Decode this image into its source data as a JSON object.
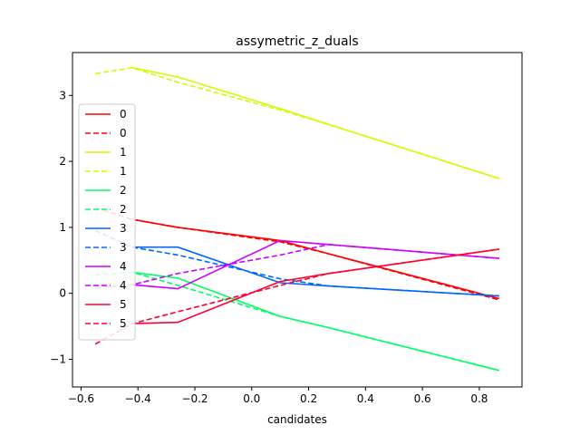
{
  "chart_data": {
    "type": "line",
    "title": "assymetric_z_duals",
    "xlabel": "candidates",
    "ylabel": "",
    "xlim": [
      -0.63,
      0.95
    ],
    "ylim": [
      -1.42,
      3.65
    ],
    "xticks": [
      -0.6,
      -0.4,
      -0.2,
      0.0,
      0.2,
      0.4,
      0.6,
      0.8
    ],
    "xtick_labels": [
      "−0.6",
      "−0.4",
      "−0.2",
      "0.0",
      "0.2",
      "0.4",
      "0.6",
      "0.8"
    ],
    "yticks": [
      -1,
      0,
      1,
      2,
      3
    ],
    "ytick_labels": [
      "−1",
      "0",
      "1",
      "2",
      "3"
    ],
    "legend_position": "left",
    "series": [
      {
        "name": "0",
        "color": "#ff0000",
        "dash": "solid",
        "x": [
          -0.42,
          -0.26,
          0.1,
          0.27,
          0.87
        ],
        "y": [
          1.12,
          1.0,
          0.8,
          0.6,
          -0.08
        ]
      },
      {
        "name": "0",
        "color": "#ff0000",
        "dash": "dashed",
        "x": [
          -0.55,
          -0.42,
          -0.26,
          0.1,
          0.27,
          0.87
        ],
        "y": [
          1.3,
          1.12,
          1.0,
          0.78,
          0.6,
          -0.1
        ]
      },
      {
        "name": "1",
        "color": "#ccff00",
        "dash": "solid",
        "x": [
          -0.42,
          -0.26,
          0.1,
          0.27,
          0.87
        ],
        "y": [
          3.42,
          3.28,
          2.8,
          2.56,
          1.74
        ]
      },
      {
        "name": "1",
        "color": "#ccff00",
        "dash": "dashed",
        "x": [
          -0.55,
          -0.42,
          -0.26,
          0.1,
          0.27,
          0.87
        ],
        "y": [
          3.33,
          3.42,
          3.2,
          2.78,
          2.56,
          1.74
        ]
      },
      {
        "name": "2",
        "color": "#00ff66",
        "dash": "solid",
        "x": [
          -0.42,
          -0.26,
          0.1,
          0.27,
          0.87
        ],
        "y": [
          0.32,
          0.23,
          -0.35,
          -0.52,
          -1.17
        ]
      },
      {
        "name": "2",
        "color": "#00ff66",
        "dash": "dashed",
        "x": [
          -0.55,
          -0.42,
          -0.26,
          0.1,
          0.27,
          0.87
        ],
        "y": [
          0.28,
          0.32,
          0.12,
          -0.35,
          -0.52,
          -1.17
        ]
      },
      {
        "name": "3",
        "color": "#0066ff",
        "dash": "solid",
        "x": [
          -0.42,
          -0.26,
          0.1,
          0.27,
          0.87
        ],
        "y": [
          0.7,
          0.7,
          0.16,
          0.11,
          -0.04
        ]
      },
      {
        "name": "3",
        "color": "#0066ff",
        "dash": "dashed",
        "x": [
          -0.55,
          -0.42,
          -0.26,
          0.1,
          0.27,
          0.87
        ],
        "y": [
          0.95,
          0.7,
          0.58,
          0.22,
          0.11,
          -0.04
        ]
      },
      {
        "name": "4",
        "color": "#cc00ff",
        "dash": "solid",
        "x": [
          -0.42,
          -0.26,
          0.1,
          0.27,
          0.87
        ],
        "y": [
          0.13,
          0.07,
          0.8,
          0.74,
          0.53
        ]
      },
      {
        "name": "4",
        "color": "#cc00ff",
        "dash": "dashed",
        "x": [
          -0.55,
          -0.42,
          -0.26,
          0.1,
          0.27,
          0.87
        ],
        "y": [
          0.08,
          0.13,
          0.3,
          0.58,
          0.74,
          0.53
        ]
      },
      {
        "name": "5",
        "color": "#ff0033",
        "dash": "solid",
        "x": [
          -0.42,
          -0.26,
          0.1,
          0.27,
          0.87
        ],
        "y": [
          -0.46,
          -0.44,
          0.18,
          0.3,
          0.67
        ]
      },
      {
        "name": "5",
        "color": "#ff0033",
        "dash": "dashed",
        "x": [
          -0.55,
          -0.42,
          -0.26,
          0.1,
          0.27,
          0.87
        ],
        "y": [
          -0.77,
          -0.46,
          -0.28,
          0.12,
          0.3,
          0.67
        ]
      }
    ]
  }
}
